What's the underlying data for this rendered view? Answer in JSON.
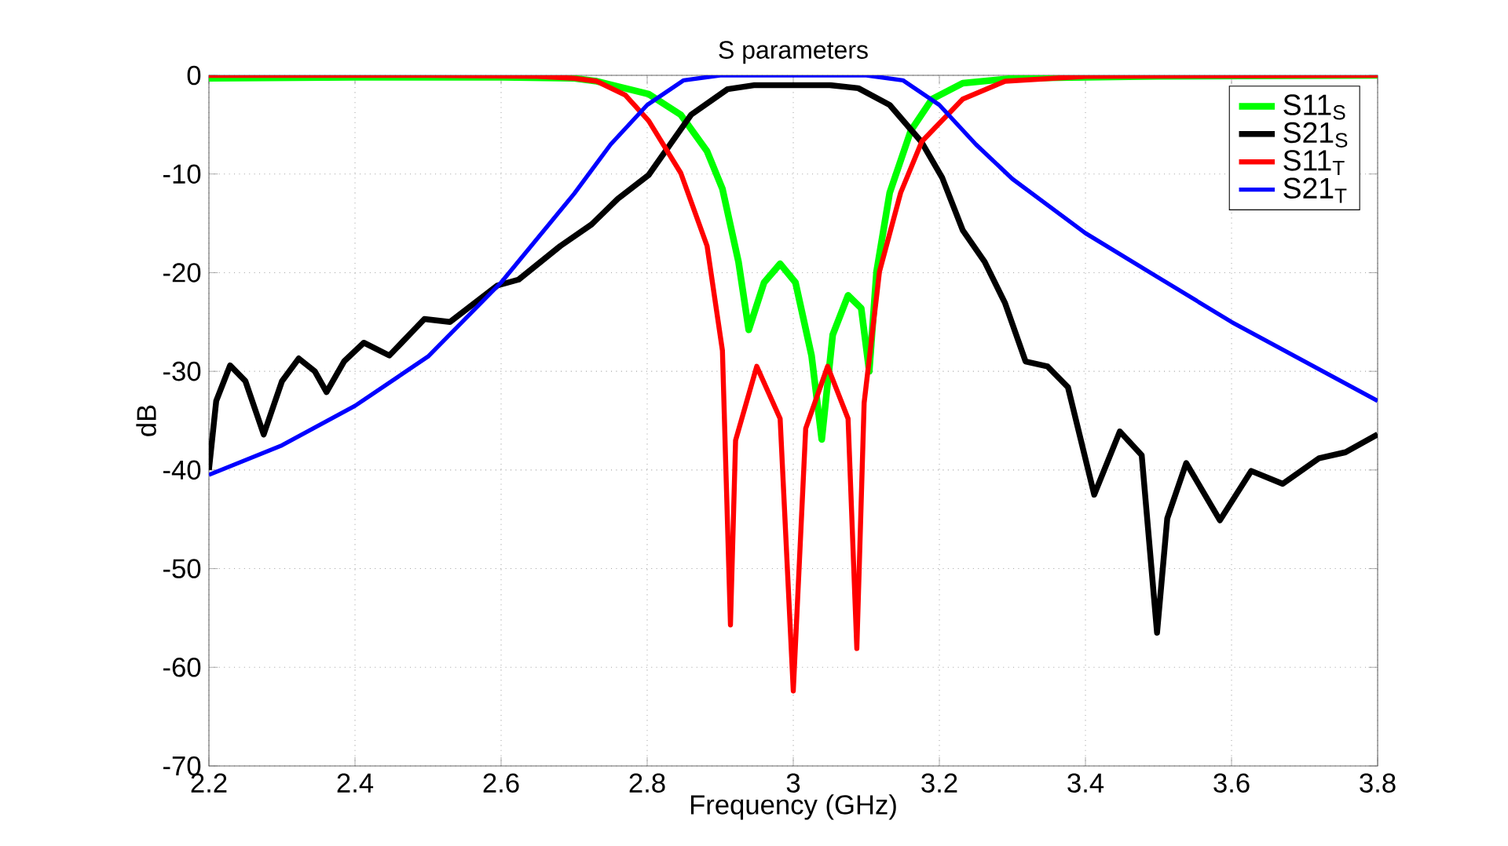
{
  "chart_data": {
    "type": "line",
    "title": "S parameters",
    "xlabel": "Frequency (GHz)",
    "ylabel": "dB",
    "xlim": [
      2.2,
      3.8
    ],
    "ylim": [
      -70,
      0
    ],
    "xticks": [
      2.2,
      2.4,
      2.6,
      2.8,
      3,
      3.2,
      3.4,
      3.6,
      3.8
    ],
    "yticks": [
      -70,
      -60,
      -50,
      -40,
      -30,
      -20,
      -10,
      0
    ],
    "grid": true,
    "legend": "top right",
    "line_style": "solid",
    "marker": "none",
    "series": [
      {
        "name": "S11$_{S}$",
        "color": "#00ff00",
        "x": [
          2.2,
          2.4,
          2.6,
          2.7,
          2.731,
          2.802,
          2.846,
          2.882,
          2.903,
          2.925,
          2.939,
          2.96,
          2.982,
          3.003,
          3.025,
          3.039,
          3.054,
          3.075,
          3.093,
          3.104,
          3.114,
          3.132,
          3.161,
          3.19,
          3.232,
          3.3,
          3.5,
          3.8
        ],
        "values": [
          -0.3,
          -0.2,
          -0.2,
          -0.3,
          -0.6,
          -1.9,
          -4,
          -7.7,
          -11.5,
          -18.9,
          -25.8,
          -21,
          -19.1,
          -21,
          -28.4,
          -36.9,
          -26.3,
          -22.3,
          -23.6,
          -30,
          -19.9,
          -11.9,
          -5.6,
          -2.4,
          -0.8,
          -0.3,
          -0.1,
          0
        ]
      },
      {
        "name": "S21$_{S}$",
        "color": "#000000",
        "x": [
          2.2,
          2.21,
          2.229,
          2.25,
          2.275,
          2.3,
          2.323,
          2.345,
          2.361,
          2.385,
          2.412,
          2.447,
          2.495,
          2.53,
          2.595,
          2.624,
          2.681,
          2.724,
          2.76,
          2.802,
          2.86,
          2.91,
          2.946,
          3.0,
          3.05,
          3.089,
          3.132,
          3.175,
          3.204,
          3.232,
          3.262,
          3.29,
          3.318,
          3.348,
          3.376,
          3.412,
          3.447,
          3.477,
          3.498,
          3.512,
          3.538,
          3.584,
          3.627,
          3.67,
          3.72,
          3.756,
          3.8
        ],
        "values": [
          -40,
          -33,
          -29.4,
          -31,
          -36.4,
          -31,
          -28.7,
          -30,
          -32.1,
          -29,
          -27.1,
          -28.4,
          -24.7,
          -25,
          -21.3,
          -20.7,
          -17.3,
          -15.1,
          -12.5,
          -10.1,
          -4,
          -1.4,
          -1,
          -1,
          -1,
          -1.3,
          -3,
          -6.7,
          -10.4,
          -15.7,
          -18.9,
          -23.1,
          -29,
          -29.5,
          -31.6,
          -42.5,
          -36.1,
          -38.5,
          -56.5,
          -44.9,
          -39.3,
          -45.1,
          -40.1,
          -41.4,
          -38.8,
          -38.2,
          -36.4
        ]
      },
      {
        "name": "S11$_{T}$",
        "color": "#ff0000",
        "x": [
          2.2,
          2.5,
          2.65,
          2.7,
          2.731,
          2.77,
          2.802,
          2.846,
          2.882,
          2.903,
          2.914,
          2.921,
          2.95,
          2.982,
          3.0,
          3.017,
          3.047,
          3.075,
          3.087,
          3.097,
          3.118,
          3.147,
          3.176,
          3.232,
          3.29,
          3.4,
          3.8
        ],
        "values": [
          0,
          0,
          -0.1,
          -0.3,
          -0.6,
          -2,
          -4.6,
          -9.9,
          -17.3,
          -27.9,
          -55.7,
          -37,
          -29.5,
          -34.8,
          -62.4,
          -35.8,
          -29.5,
          -34.8,
          -58.1,
          -33.2,
          -19.9,
          -11.9,
          -6.7,
          -2.4,
          -0.6,
          -0.1,
          0
        ]
      },
      {
        "name": "S21$_{T}$",
        "color": "#0000ff",
        "x": [
          2.2,
          2.3,
          2.4,
          2.5,
          2.6,
          2.7,
          2.75,
          2.8,
          2.85,
          2.9,
          3.0,
          3.1,
          3.15,
          3.2,
          3.25,
          3.3,
          3.4,
          3.5,
          3.6,
          3.7,
          3.8
        ],
        "values": [
          -40.5,
          -37.5,
          -33.5,
          -28.5,
          -21,
          -12,
          -7,
          -3,
          -0.5,
          0,
          0,
          0,
          -0.5,
          -3,
          -7,
          -10.5,
          -16,
          -20.5,
          -25,
          -29,
          -33
        ]
      }
    ]
  }
}
